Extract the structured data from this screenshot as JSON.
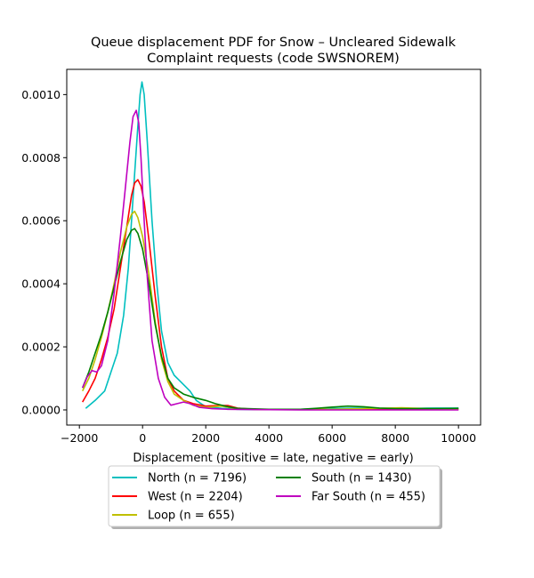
{
  "chart_data": {
    "type": "line",
    "title_line1": "Queue displacement PDF for Snow – Uncleared Sidewalk",
    "title_line2": "Complaint  requests (code SWSNOREM)",
    "xlabel": "Displacement (positive = late, negative = early)",
    "ylabel": "",
    "xlim": [
      -2400,
      10700
    ],
    "ylim": [
      -4.8e-05,
      0.00108
    ],
    "x_ticks": [
      -2000,
      0,
      2000,
      4000,
      6000,
      8000,
      10000
    ],
    "x_tick_labels": [
      "−2000",
      "0",
      "2000",
      "4000",
      "6000",
      "8000",
      "10000"
    ],
    "y_ticks": [
      0,
      0.0002,
      0.0004,
      0.0006,
      0.0008,
      0.001
    ],
    "y_tick_labels": [
      "0.0000",
      "0.0002",
      "0.0004",
      "0.0006",
      "0.0008",
      "0.0010"
    ],
    "grid": false,
    "legend_placement": "below plot, two columns",
    "series": [
      {
        "name": "North (n = 7196)",
        "color": "#00bfbf",
        "points": [
          [
            -1800,
            5e-06
          ],
          [
            -1500,
            3e-05
          ],
          [
            -1200,
            6e-05
          ],
          [
            -1000,
            0.00012
          ],
          [
            -800,
            0.00018
          ],
          [
            -600,
            0.0003
          ],
          [
            -450,
            0.00045
          ],
          [
            -350,
            0.0006
          ],
          [
            -250,
            0.00075
          ],
          [
            -150,
            0.0009
          ],
          [
            -80,
            0.001
          ],
          [
            -20,
            0.00104
          ],
          [
            50,
            0.001
          ],
          [
            150,
            0.00085
          ],
          [
            300,
            0.0006
          ],
          [
            450,
            0.0004
          ],
          [
            600,
            0.00025
          ],
          [
            800,
            0.00015
          ],
          [
            1000,
            0.00011
          ],
          [
            1200,
            9e-05
          ],
          [
            1500,
            6e-05
          ],
          [
            1700,
            3e-05
          ],
          [
            2000,
            1e-05
          ],
          [
            2500,
            5e-06
          ],
          [
            3000,
            2e-06
          ],
          [
            3500,
            1e-06
          ],
          [
            5000,
            2e-06
          ],
          [
            6000,
            5e-06
          ],
          [
            7000,
            6e-06
          ],
          [
            8000,
            4e-06
          ],
          [
            9000,
            6e-06
          ],
          [
            10000,
            6e-06
          ]
        ]
      },
      {
        "name": "West (n = 2204)",
        "color": "#ff0000",
        "points": [
          [
            -1900,
            2.5e-05
          ],
          [
            -1700,
            6e-05
          ],
          [
            -1500,
            0.0001
          ],
          [
            -1300,
            0.00016
          ],
          [
            -1100,
            0.00023
          ],
          [
            -900,
            0.00032
          ],
          [
            -700,
            0.00045
          ],
          [
            -500,
            0.00058
          ],
          [
            -350,
            0.00068
          ],
          [
            -250,
            0.00072
          ],
          [
            -150,
            0.00073
          ],
          [
            -50,
            0.00071
          ],
          [
            50,
            0.00066
          ],
          [
            200,
            0.00054
          ],
          [
            400,
            0.00036
          ],
          [
            600,
            0.0002
          ],
          [
            800,
            0.0001
          ],
          [
            1000,
            6e-05
          ],
          [
            1300,
            3e-05
          ],
          [
            1600,
            2e-05
          ],
          [
            2000,
            1.2e-05
          ],
          [
            2400,
            1.4e-05
          ],
          [
            2700,
            1.4e-05
          ],
          [
            3000,
            6e-06
          ],
          [
            3500,
            2e-06
          ],
          [
            5000,
            1e-06
          ],
          [
            6500,
            2e-06
          ],
          [
            10000,
            2e-06
          ]
        ]
      },
      {
        "name": "Loop (n = 655)",
        "color": "#bfbf00",
        "points": [
          [
            -1900,
            6e-05
          ],
          [
            -1700,
            0.0001
          ],
          [
            -1500,
            0.00016
          ],
          [
            -1300,
            0.00023
          ],
          [
            -1100,
            0.00031
          ],
          [
            -900,
            0.0004
          ],
          [
            -700,
            0.0005
          ],
          [
            -500,
            0.00058
          ],
          [
            -350,
            0.00062
          ],
          [
            -250,
            0.00063
          ],
          [
            -150,
            0.00061
          ],
          [
            0,
            0.00055
          ],
          [
            200,
            0.00043
          ],
          [
            400,
            0.00028
          ],
          [
            600,
            0.00016
          ],
          [
            800,
            9e-05
          ],
          [
            1000,
            5e-05
          ],
          [
            1300,
            3e-05
          ],
          [
            1600,
            1.5e-05
          ],
          [
            2000,
            8e-06
          ],
          [
            2500,
            1.2e-05
          ],
          [
            3000,
            3e-06
          ],
          [
            4000,
            1e-06
          ],
          [
            6000,
            2e-06
          ],
          [
            7500,
            5e-06
          ],
          [
            8200,
            7e-06
          ],
          [
            9000,
            4e-06
          ],
          [
            10000,
            2e-06
          ]
        ]
      },
      {
        "name": "South (n = 1430)",
        "color": "#008000",
        "points": [
          [
            -1900,
            7e-05
          ],
          [
            -1700,
            0.00012
          ],
          [
            -1500,
            0.00018
          ],
          [
            -1300,
            0.00024
          ],
          [
            -1100,
            0.00031
          ],
          [
            -900,
            0.00039
          ],
          [
            -700,
            0.00047
          ],
          [
            -500,
            0.00054
          ],
          [
            -350,
            0.00057
          ],
          [
            -250,
            0.000575
          ],
          [
            -150,
            0.00056
          ],
          [
            0,
            0.00051
          ],
          [
            200,
            0.0004
          ],
          [
            400,
            0.00027
          ],
          [
            600,
            0.00017
          ],
          [
            800,
            0.0001
          ],
          [
            1000,
            7e-05
          ],
          [
            1300,
            5e-05
          ],
          [
            1600,
            4e-05
          ],
          [
            2000,
            3e-05
          ],
          [
            2300,
            2e-05
          ],
          [
            2700,
            1e-05
          ],
          [
            3000,
            5e-06
          ],
          [
            4000,
            2e-06
          ],
          [
            5000,
            2e-06
          ],
          [
            5500,
            5e-06
          ],
          [
            6000,
            9e-06
          ],
          [
            6500,
            1.2e-05
          ],
          [
            7000,
            1e-05
          ],
          [
            7500,
            6e-06
          ],
          [
            8000,
            4e-06
          ],
          [
            9000,
            4e-06
          ],
          [
            10000,
            5e-06
          ]
        ]
      },
      {
        "name": "Far South (n = 455)",
        "color": "#bf00bf",
        "points": [
          [
            -1900,
            7e-05
          ],
          [
            -1750,
            0.000105
          ],
          [
            -1600,
            0.000125
          ],
          [
            -1450,
            0.00012
          ],
          [
            -1300,
            0.00014
          ],
          [
            -1100,
            0.00022
          ],
          [
            -900,
            0.00037
          ],
          [
            -700,
            0.00055
          ],
          [
            -550,
            0.0007
          ],
          [
            -400,
            0.00085
          ],
          [
            -300,
            0.00093
          ],
          [
            -200,
            0.00095
          ],
          [
            -120,
            0.00091
          ],
          [
            -50,
            0.0008
          ],
          [
            50,
            0.0006
          ],
          [
            150,
            0.00042
          ],
          [
            300,
            0.00022
          ],
          [
            500,
            0.0001
          ],
          [
            700,
            4e-05
          ],
          [
            900,
            1.5e-05
          ],
          [
            1100,
            2e-05
          ],
          [
            1300,
            2.5e-05
          ],
          [
            1500,
            2e-05
          ],
          [
            1800,
            8e-06
          ],
          [
            2200,
            4e-06
          ],
          [
            2700,
            2e-06
          ],
          [
            3500,
            1e-06
          ],
          [
            5000,
            0.0
          ],
          [
            7000,
            0.0
          ],
          [
            10000,
            0.0
          ]
        ]
      }
    ]
  }
}
